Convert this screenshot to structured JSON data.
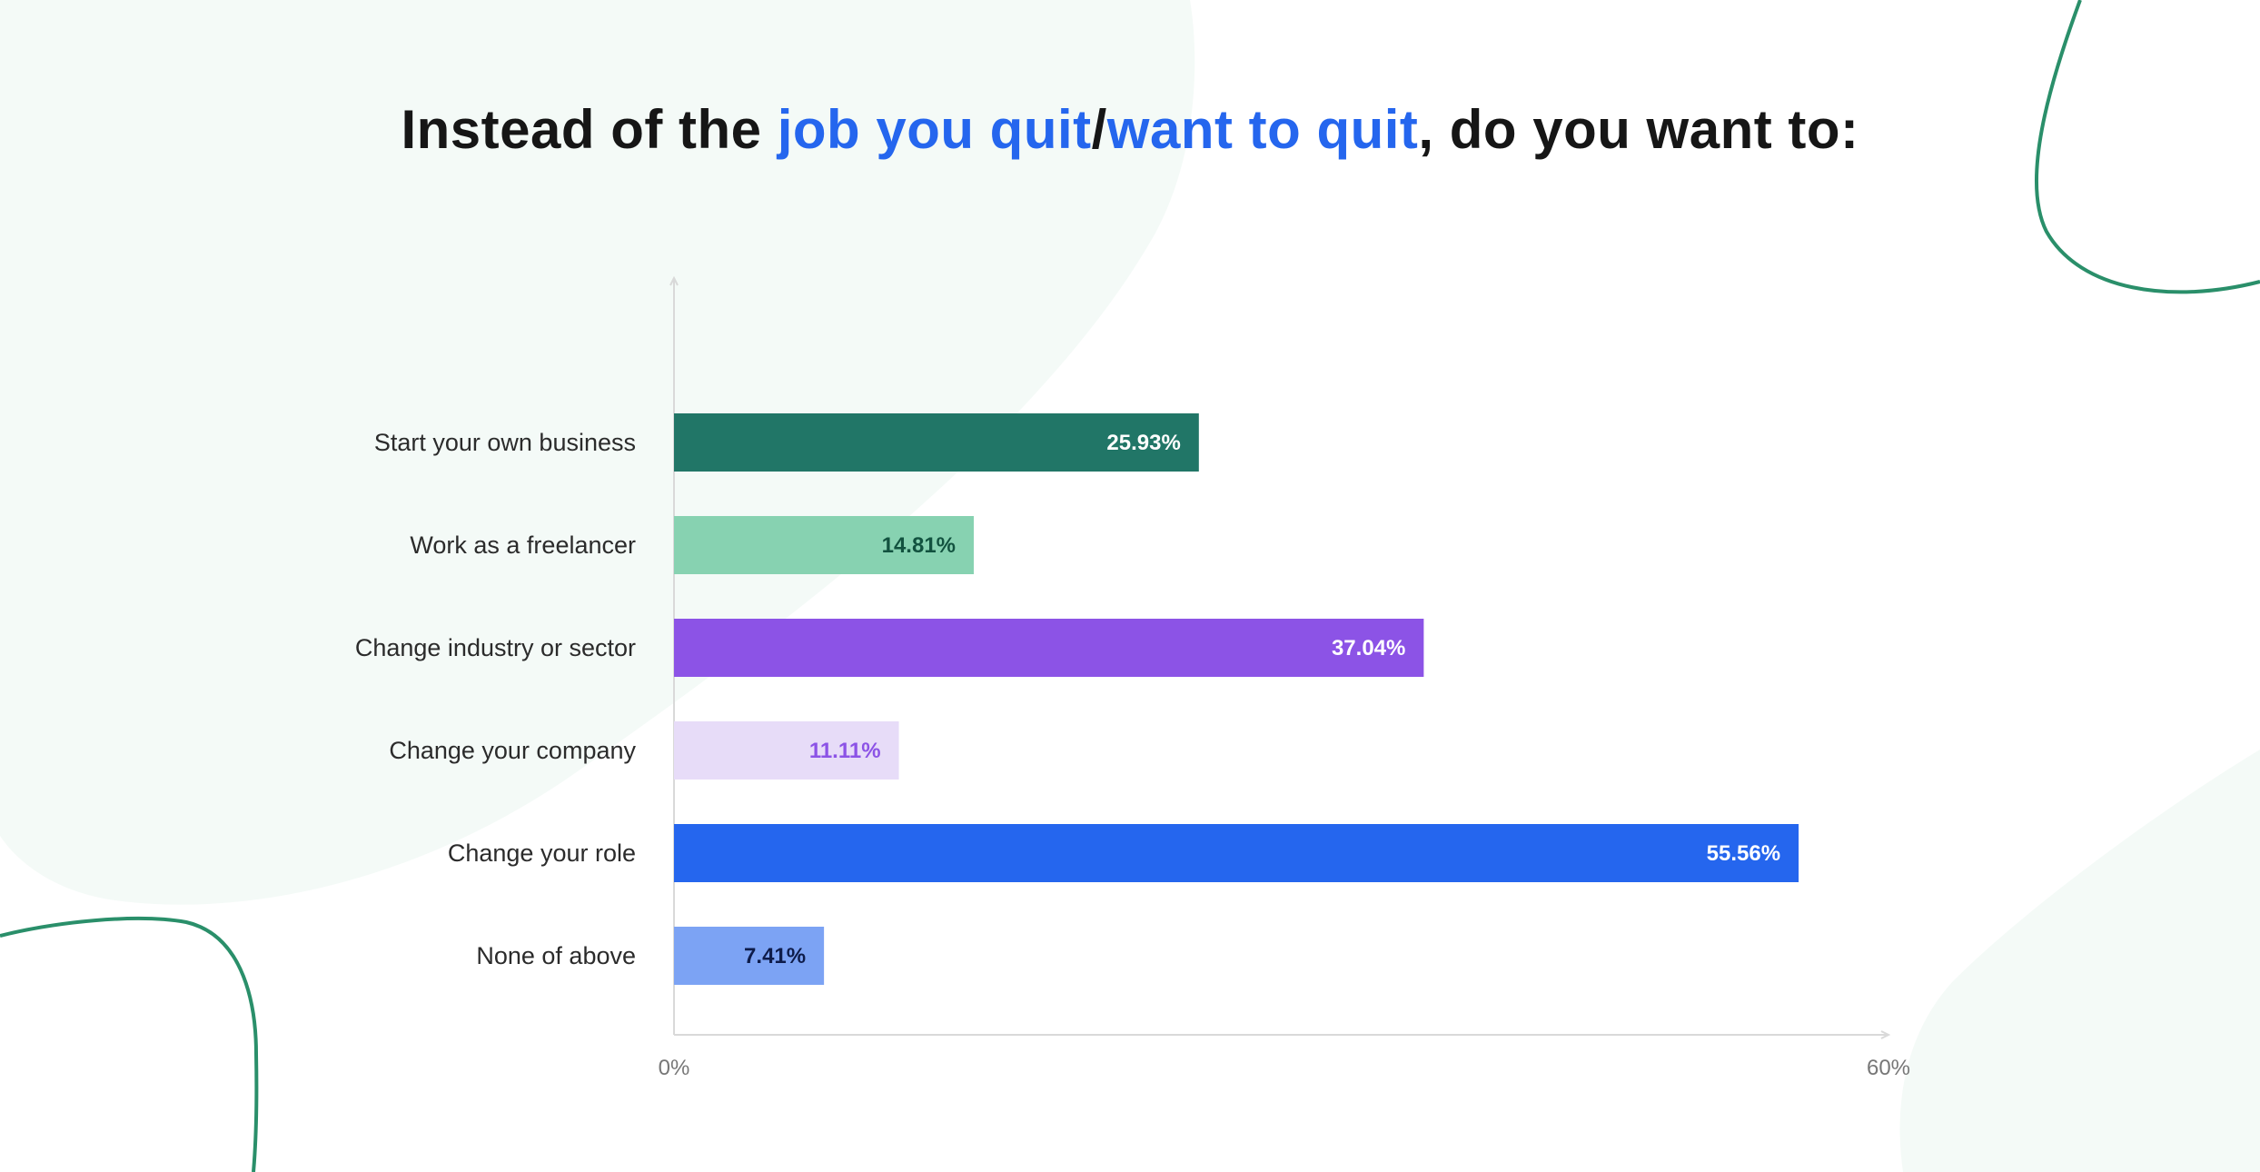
{
  "title": {
    "part1": "Instead of the ",
    "highlight1": "job you quit",
    "separator": "/",
    "highlight2": "want to quit",
    "part2": ", do you want to:"
  },
  "colors": {
    "highlight": "#2566ee",
    "decor_fill": "#f4faf7",
    "decor_stroke": "#2a8f6a"
  },
  "chart_data": {
    "type": "bar",
    "orientation": "horizontal",
    "categories": [
      "Start your own business",
      "Work as a freelancer",
      "Change industry or sector",
      "Change your company",
      "Change your role",
      "None of above"
    ],
    "values": [
      25.93,
      14.81,
      37.04,
      11.11,
      55.56,
      7.41
    ],
    "value_labels": [
      "25.93%",
      "14.81%",
      "37.04%",
      "11.11%",
      "55.56%",
      "7.41%"
    ],
    "bar_colors": [
      "#217667",
      "#87d2b1",
      "#8c53e6",
      "#e7dcf8",
      "#2566ee",
      "#7ca3f4"
    ],
    "label_colors": [
      "#ffffff",
      "#12523f",
      "#ffffff",
      "#8c53e6",
      "#ffffff",
      "#0e1c4a"
    ],
    "xlim": [
      0,
      60
    ],
    "x_ticks": [
      "0%",
      "60%"
    ],
    "grid": false,
    "legend": "none"
  }
}
